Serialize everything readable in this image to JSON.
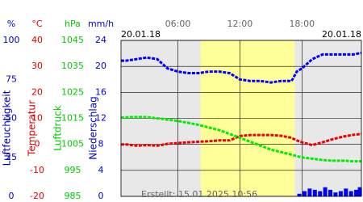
{
  "chart_data": {
    "type": "line",
    "date_left": "20.01.18",
    "date_right": "20.01.18",
    "footer": "Erstellt: 15.01.2025 10:56",
    "xlim": [
      0.5,
      23.75
    ],
    "xticks": [
      {
        "value": 6,
        "label": "06:00"
      },
      {
        "value": 12,
        "label": "12:00"
      },
      {
        "value": 18,
        "label": "18:00"
      }
    ],
    "daylight": [
      8.2,
      17.3
    ],
    "grid": true,
    "axes": [
      {
        "unit": "%",
        "title": "Luftfeuchtigkeit",
        "color": "#0000cc",
        "ylim": [
          0,
          100
        ],
        "yticks": [
          100,
          75,
          50,
          25,
          0
        ]
      },
      {
        "unit": "°C",
        "title": "Temperatur",
        "color": "#dd0000",
        "ylim": [
          -20,
          40
        ],
        "yticks": [
          40,
          30,
          20,
          10,
          0,
          -10,
          -20
        ]
      },
      {
        "unit": "hPa",
        "title": "Luftdruck",
        "color": "#00cc00",
        "ylim": [
          985,
          1045
        ],
        "yticks": [
          1045,
          1035,
          1025,
          1015,
          1005,
          995,
          985
        ]
      },
      {
        "unit": "mm/h",
        "title": "Niederschlag",
        "color": "#0000cc",
        "ylim": [
          0,
          24
        ],
        "yticks": [
          24,
          20,
          16,
          12,
          8,
          4,
          0
        ]
      }
    ],
    "x": [
      0.5,
      1,
      2,
      3,
      4,
      4.5,
      5,
      6,
      7,
      8,
      9,
      10,
      11,
      12,
      13,
      14,
      15,
      16,
      17,
      17.5,
      18,
      19,
      20,
      21,
      22,
      23,
      23.75
    ],
    "series": [
      {
        "axis": 0,
        "color": "#0000ff",
        "values": [
          87,
          87,
          88,
          89,
          88,
          85,
          82,
          80,
          79,
          79,
          80,
          80,
          79,
          75,
          74,
          74,
          73,
          74,
          74,
          80,
          82,
          88,
          91,
          91,
          91,
          91,
          92
        ]
      },
      {
        "axis": 1,
        "color": "#ee0000",
        "values": [
          0,
          0,
          -0.5,
          -0.3,
          -0.5,
          -0.2,
          0.2,
          0.5,
          0.8,
          1,
          1.2,
          1.5,
          1.5,
          3.2,
          3.6,
          3.6,
          3.6,
          3.3,
          2.5,
          1.5,
          0.8,
          -0.3,
          0.8,
          2,
          3,
          3.7,
          4
        ]
      },
      {
        "axis": 2,
        "color": "#00ee00",
        "values": [
          1015.3,
          1015.4,
          1015.5,
          1015.5,
          1015,
          1014.8,
          1014.5,
          1014,
          1013.3,
          1012.5,
          1011.5,
          1010.5,
          1009,
          1007.5,
          1006,
          1004.5,
          1003,
          1002,
          1001,
          1000.5,
          1000,
          999.5,
          999,
          998.7,
          998.7,
          998.5,
          998.5
        ]
      }
    ],
    "precipitation": {
      "axis": 3,
      "color": "#0000ff",
      "x": [
        17.75,
        18.25,
        18.75,
        19.25,
        19.75,
        20.25,
        20.75,
        21.25,
        21.75,
        22.25,
        22.75,
        23.25,
        23.6
      ],
      "values": [
        0.4,
        0.8,
        1.2,
        1.0,
        0.8,
        1.4,
        1.0,
        0.6,
        0.8,
        1.2,
        0.8,
        1.0,
        1.4
      ]
    }
  }
}
